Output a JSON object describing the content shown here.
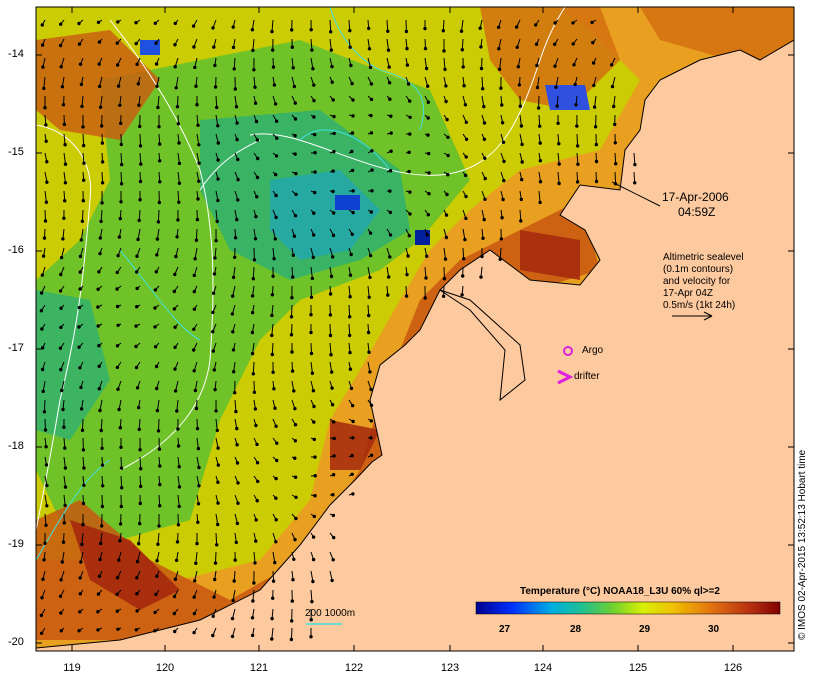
{
  "map": {
    "lon_ticks": [
      "119",
      "120",
      "121",
      "122",
      "123",
      "124",
      "125",
      "126"
    ],
    "lat_ticks": [
      "-14",
      "-15",
      "-16",
      "-17",
      "-18",
      "-19",
      "-20"
    ],
    "date_label_line1": "17-Apr-2006",
    "date_label_line2": "04:59Z",
    "altimetry_text": [
      "Altimetric sealevel",
      "(0.1m contours)",
      "and velocity for",
      "17-Apr 04Z",
      "0.5m/s (1kt 24h)"
    ],
    "argo_label": "Argo",
    "drifter_label": "drifter",
    "bathy_label": "200  1000m",
    "colorbar_title": "Temperature (°C) NOAA18_L3U 60% ql>=2",
    "colorbar_ticks": [
      "27",
      "28",
      "29",
      "30"
    ],
    "side_stamp": "© IMOS 02-Apr-2015 13:52:13 Hobart time",
    "colors": {
      "land": "#fdc99e",
      "sst_warm": "#a4280e",
      "sst_cool": "#20a6b0",
      "argo": "#e020e0",
      "bathy_contour": "#40e0e0"
    }
  }
}
